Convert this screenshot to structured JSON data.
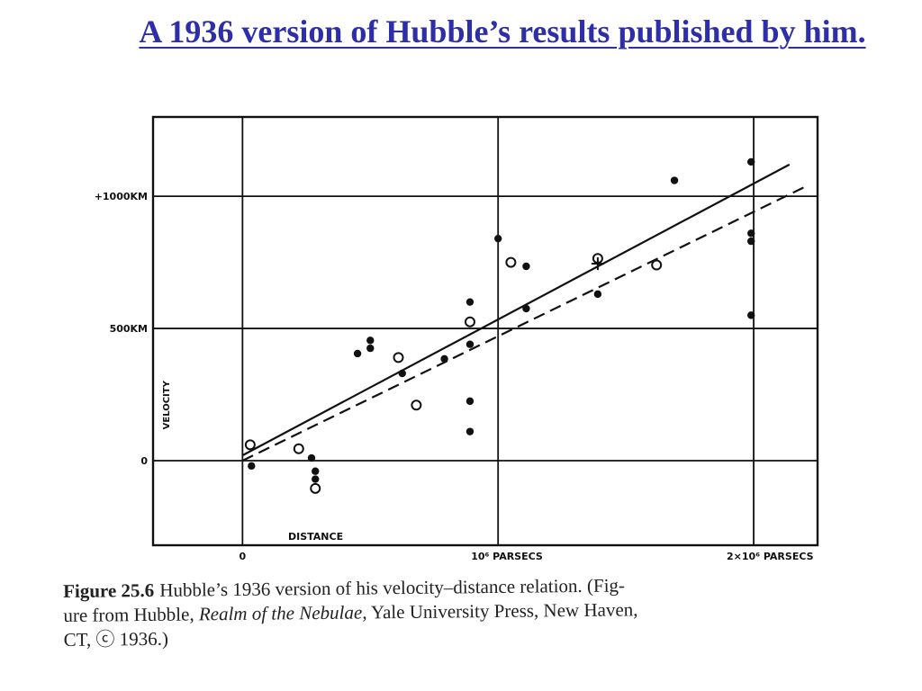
{
  "slide": {
    "title": "A 1936 version of Hubble’s results published by him."
  },
  "caption": {
    "figure_label": "Figure 25.6",
    "text_1": "Hubble’s 1936 version of his velocity–distance relation. (Fig-",
    "text_2": "ure from Hubble, ",
    "book_title": "Realm of the Nebulae",
    "text_3": ", Yale University Press, New Haven,",
    "text_4": "CT, ⓒ 1936.)"
  },
  "colors": {
    "title": "#2e2ea8",
    "ink": "#111111"
  },
  "chart_data": {
    "type": "scatter",
    "x_unit": "parsecs",
    "y_unit": "km/s",
    "xlabel": "DISTANCE",
    "ylabel": "VELOCITY",
    "xlim": [
      -0.0035,
      0.0225
    ],
    "ylim": [
      -320,
      1300
    ],
    "x_ticks": [
      {
        "value": 0,
        "label": "0"
      },
      {
        "value": 0.01,
        "label": "10⁶ PARSECS"
      },
      {
        "value": 0.02,
        "label": "2×10⁶ PARSECS"
      }
    ],
    "y_ticks": [
      {
        "value": 0,
        "label": "0"
      },
      {
        "value": 500,
        "label": "500KM"
      },
      {
        "value": 1000,
        "label": "+1000KM"
      }
    ],
    "grid": true,
    "series": [
      {
        "marker": "filled",
        "points": [
          [
            0.00035,
            -20
          ],
          [
            0.0022,
            50
          ],
          [
            0.0027,
            10
          ],
          [
            0.00285,
            -40
          ],
          [
            0.00285,
            -70
          ],
          [
            0.0045,
            405
          ],
          [
            0.005,
            455
          ],
          [
            0.005,
            425
          ],
          [
            0.00625,
            330
          ],
          [
            0.0079,
            385
          ],
          [
            0.0089,
            600
          ],
          [
            0.0089,
            440
          ],
          [
            0.0089,
            225
          ],
          [
            0.0089,
            110
          ],
          [
            0.01,
            840
          ],
          [
            0.0111,
            735
          ],
          [
            0.0111,
            575
          ],
          [
            0.0139,
            630
          ],
          [
            0.0169,
            1060
          ],
          [
            0.0199,
            1130
          ],
          [
            0.0199,
            860
          ],
          [
            0.0199,
            830
          ],
          [
            0.0199,
            550
          ]
        ]
      },
      {
        "marker": "open",
        "points": [
          [
            0.0003,
            60
          ],
          [
            0.0022,
            45
          ],
          [
            0.00285,
            -105
          ],
          [
            0.0061,
            390
          ],
          [
            0.0068,
            210
          ],
          [
            0.0089,
            525
          ],
          [
            0.0105,
            750
          ],
          [
            0.0139,
            765
          ],
          [
            0.0162,
            740
          ]
        ]
      },
      {
        "marker": "cross",
        "points": [
          [
            0.0139,
            745
          ]
        ]
      }
    ],
    "fit_lines": [
      {
        "style": "solid",
        "from": [
          0,
          20
        ],
        "to": [
          0.0214,
          1120
        ]
      },
      {
        "style": "dashed",
        "from": [
          0,
          0
        ],
        "to": [
          0.0221,
          1040
        ]
      }
    ]
  }
}
